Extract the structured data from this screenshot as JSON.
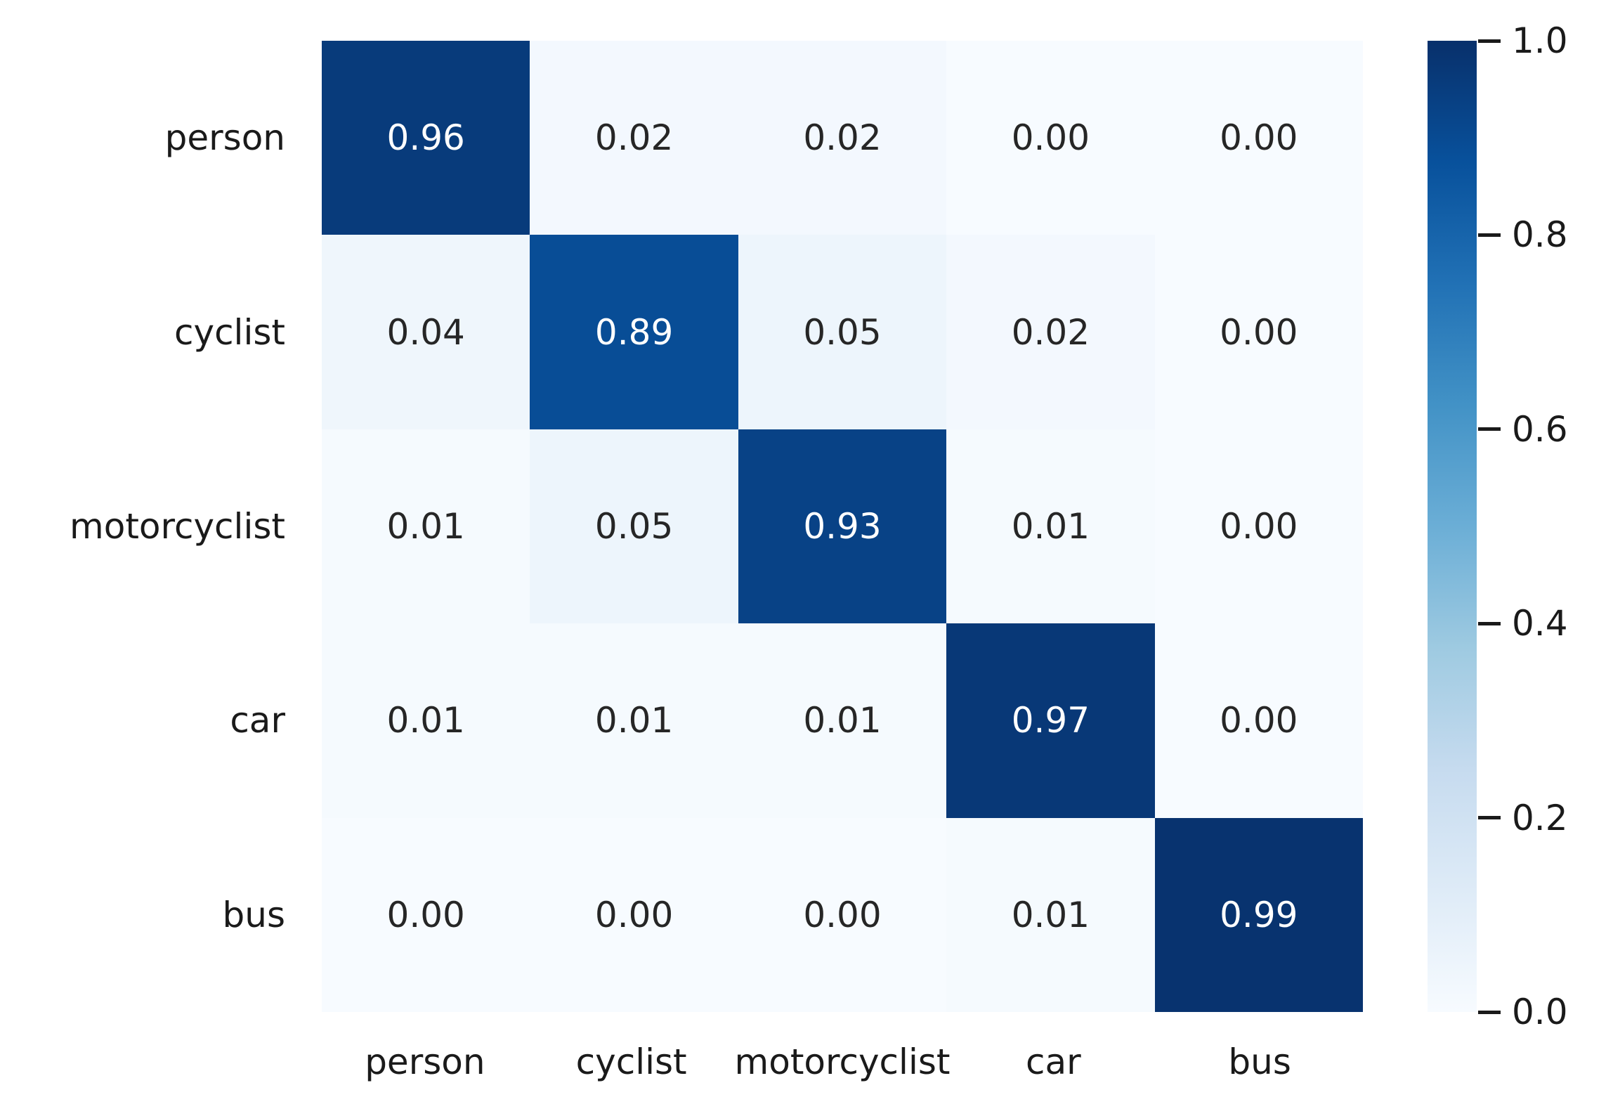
{
  "chart_data": {
    "type": "heatmap",
    "title": "",
    "xlabel": "",
    "ylabel": "",
    "x_categories": [
      "person",
      "cyclist",
      "motorcyclist",
      "car",
      "bus"
    ],
    "y_categories": [
      "person",
      "cyclist",
      "motorcyclist",
      "car",
      "bus"
    ],
    "matrix": [
      [
        0.96,
        0.02,
        0.02,
        0.0,
        0.0
      ],
      [
        0.04,
        0.89,
        0.05,
        0.02,
        0.0
      ],
      [
        0.01,
        0.05,
        0.93,
        0.01,
        0.0
      ],
      [
        0.01,
        0.01,
        0.01,
        0.97,
        0.0
      ],
      [
        0.0,
        0.0,
        0.0,
        0.01,
        0.99
      ]
    ],
    "cell_labels": [
      [
        "0.96",
        "0.02",
        "0.02",
        "0.00",
        "0.00"
      ],
      [
        "0.04",
        "0.89",
        "0.05",
        "0.02",
        "0.00"
      ],
      [
        "0.01",
        "0.05",
        "0.93",
        "0.01",
        "0.00"
      ],
      [
        "0.01",
        "0.01",
        "0.01",
        "0.97",
        "0.00"
      ],
      [
        "0.00",
        "0.00",
        "0.00",
        "0.01",
        "0.99"
      ]
    ],
    "vmin": 0.0,
    "vmax": 1.0,
    "colormap": "Blues",
    "colorbar": {
      "position": "right",
      "tick_labels": [
        "1.0",
        "0.8",
        "0.6",
        "0.4",
        "0.2",
        "0.0"
      ],
      "tick_values": [
        1.0,
        0.8,
        0.6,
        0.4,
        0.2,
        0.0
      ]
    },
    "grid": false,
    "legend_position": "right"
  },
  "colors": {
    "background": "#ffffff",
    "cmap_anchors": [
      "#f7fbff",
      "#deebf7",
      "#c6dbef",
      "#9ecae1",
      "#6baed6",
      "#4292c6",
      "#2171b5",
      "#08519c",
      "#08306b"
    ],
    "annotation_on_dark": "#ffffff",
    "annotation_on_light": "#262626",
    "axis_text": "#1a1a1a"
  }
}
